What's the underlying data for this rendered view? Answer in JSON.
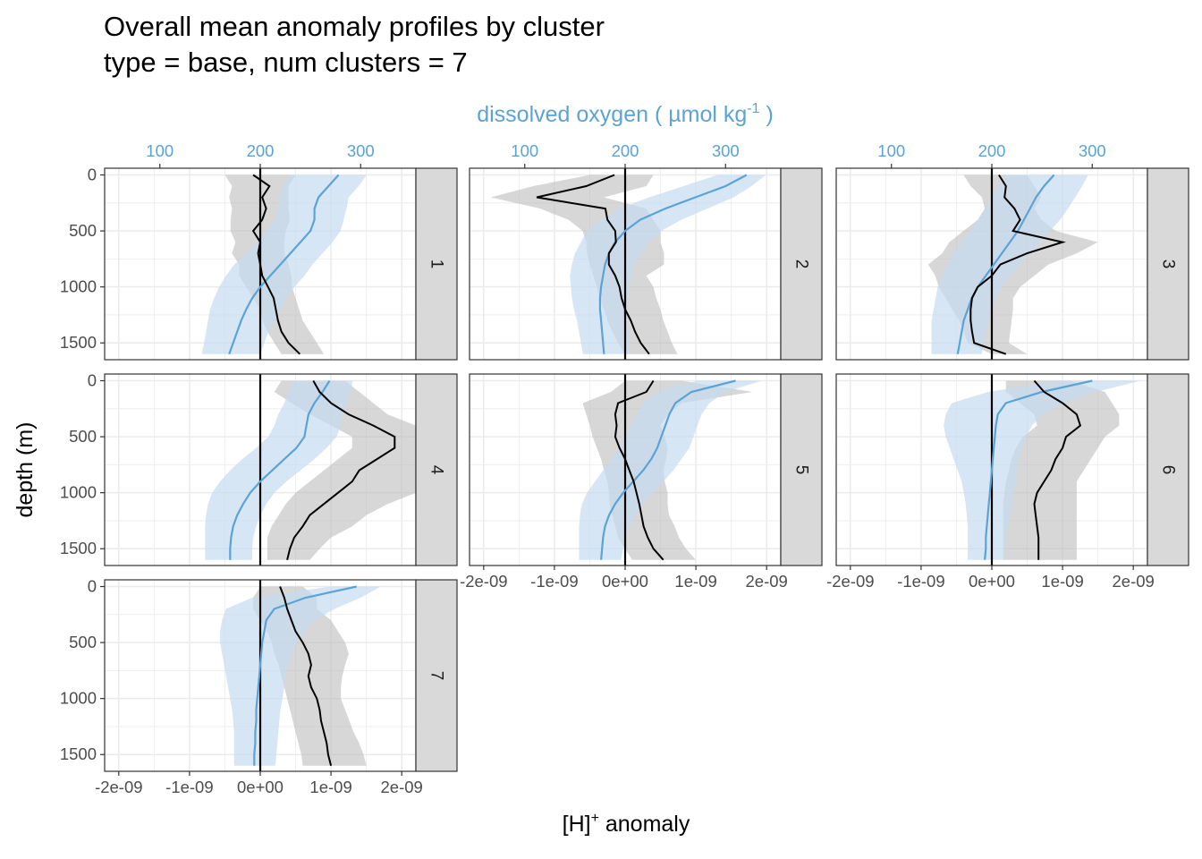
{
  "title_line1": "Overall mean anomaly profiles by cluster",
  "title_line2": "type = base, num clusters = 7",
  "chart_data": {
    "type": "line",
    "facet_by": "cluster",
    "xlabel": "[H]",
    "xlabel_superscript": "+",
    "xlabel_suffix": " anomaly",
    "ylabel": "depth (m)",
    "secondary_xlabel": "dissolved oxygen ( µmol kg",
    "secondary_xlabel_superscript": "-1",
    "secondary_xlabel_suffix": " )",
    "xlim": [
      -2.2e-09,
      2.2e-09
    ],
    "ylim": [
      1650,
      -60
    ],
    "secondary_xlim": [
      45,
      355
    ],
    "x_ticks": [
      -2e-09,
      -1e-09,
      0,
      1e-09,
      2e-09
    ],
    "x_tick_labels": [
      "-2e-09",
      "-1e-09",
      "0e+00",
      "1e-09",
      "2e-09"
    ],
    "y_ticks": [
      0,
      500,
      1000,
      1500
    ],
    "y_tick_labels": [
      "0",
      "500",
      "1000",
      "1500"
    ],
    "secondary_x_ticks": [
      100,
      200,
      300
    ],
    "secondary_x_tick_labels": [
      "100",
      "200",
      "300"
    ],
    "colors": {
      "h_line": "#000000",
      "h_ribbon": "#bdbdbd",
      "oxygen_line": "#5ba3d6",
      "oxygen_ribbon": "#c6dbef",
      "panel_border": "#333333",
      "strip_fill": "#d9d9d9",
      "grid": "#ebebeb",
      "zero_line": "#000000"
    },
    "depths": [
      0,
      100,
      200,
      300,
      400,
      500,
      600,
      700,
      800,
      900,
      1000,
      1100,
      1200,
      1300,
      1400,
      1500,
      1600
    ],
    "clusters": [
      {
        "label": "1",
        "h_anomaly": [
          -1e-10,
          1.3e-10,
          2.8e-11,
          8.4e-11,
          2.8e-11,
          -1e-10,
          0,
          -3e-11,
          0,
          2.8e-11,
          1.1e-10,
          1.9e-10,
          2.2e-10,
          2.5e-10,
          3e-10,
          4e-10,
          5.6e-10
        ],
        "h_low": [
          -5e-10,
          -4e-10,
          -4.4e-10,
          -4e-10,
          -4.2e-10,
          -4.2e-10,
          -3.5e-10,
          -4e-10,
          -3e-10,
          -3e-10,
          -2e-10,
          -1e-10,
          0,
          3e-11,
          1e-10,
          2e-10,
          3e-10
        ],
        "h_high": [
          5e-10,
          4e-10,
          4e-10,
          4e-10,
          4.2e-10,
          3.6e-10,
          3.4e-10,
          3.4e-10,
          4e-10,
          4.4e-10,
          4.5e-10,
          5e-10,
          5.5e-10,
          6e-10,
          7e-10,
          8e-10,
          9e-10
        ],
        "oxygen": [
          278,
          268,
          258,
          254,
          254,
          250,
          240,
          230,
          220,
          210,
          200,
          192,
          186,
          181,
          177,
          173,
          169
        ],
        "oxygen_low": [
          230,
          222,
          218,
          218,
          214,
          206,
          196,
          186,
          174,
          166,
          159,
          154,
          150,
          148,
          146,
          144,
          142
        ],
        "oxygen_high": [
          306,
          298,
          288,
          286,
          283,
          280,
          272,
          262,
          252,
          244,
          234,
          226,
          220,
          214,
          208,
          204,
          200
        ]
      },
      {
        "label": "2",
        "h_anomaly": [
          -1.5e-10,
          -5.5e-10,
          -1.25e-09,
          -2.8e-10,
          -2.5e-10,
          -1.4e-10,
          -1.3e-10,
          -2.3e-10,
          -2.3e-10,
          -1.4e-10,
          -8e-11,
          -5e-11,
          0,
          8e-11,
          1.4e-10,
          2.2e-10,
          3.4e-10
        ],
        "h_low": [
          -5e-10,
          -1.3e-09,
          -1.9e-09,
          -1.2e-09,
          -8e-10,
          -6e-10,
          -5.5e-10,
          -5.4e-10,
          -5e-10,
          -4.5e-10,
          -4e-10,
          -3.6e-10,
          -3e-10,
          -2.5e-10,
          -1.8e-10,
          -1e-10,
          0
        ],
        "h_high": [
          4e-10,
          3e-10,
          -3e-10,
          3e-10,
          4e-10,
          5e-10,
          5e-10,
          5.5e-10,
          5.5e-10,
          3e-10,
          4e-10,
          4.4e-10,
          5e-10,
          5.4e-10,
          6e-10,
          6.6e-10,
          7.4e-10
        ],
        "oxygen": [
          321,
          300,
          270,
          240,
          215,
          200,
          190,
          184,
          180,
          178,
          176,
          175,
          175,
          176,
          177,
          178,
          179
        ],
        "oxygen_low": [
          292,
          258,
          224,
          194,
          176,
          162,
          156,
          150,
          147,
          145,
          146,
          147,
          149,
          152,
          154,
          156,
          158
        ],
        "oxygen_high": [
          340,
          326,
          308,
          282,
          256,
          236,
          224,
          216,
          210,
          206,
          204,
          203,
          202,
          202,
          203,
          204,
          205
        ]
      },
      {
        "label": "3",
        "h_anomaly": [
          1e-10,
          2e-10,
          1.8e-10,
          3.2e-10,
          4e-10,
          3e-10,
          1e-09,
          5e-10,
          1.2e-10,
          0,
          -2e-10,
          -2.8e-10,
          -3e-10,
          -3e-10,
          -2.8e-10,
          -2.5e-10,
          2e-10
        ],
        "h_low": [
          -4e-10,
          -3e-10,
          -1.4e-10,
          -1e-10,
          -2e-10,
          -4e-10,
          -6e-10,
          -7e-10,
          -9e-10,
          -8e-10,
          -7.5e-10,
          -6.5e-10,
          -5.6e-10,
          -4.6e-10,
          -4e-10,
          -3.4e-10,
          0
        ],
        "h_high": [
          5e-10,
          6e-10,
          7e-10,
          6e-10,
          7e-10,
          9e-10,
          1.5e-09,
          1.2e-09,
          8e-10,
          6e-10,
          4e-10,
          3e-10,
          3e-10,
          2.8e-10,
          2.6e-10,
          2.4e-10,
          5e-10
        ],
        "oxygen": [
          262,
          252,
          244,
          238,
          232,
          226,
          218,
          210,
          202,
          194,
          186,
          180,
          176,
          172,
          170,
          168,
          166
        ],
        "oxygen_low": [
          212,
          206,
          200,
          194,
          186,
          178,
          170,
          162,
          156,
          150,
          146,
          144,
          142,
          140,
          140,
          140,
          140
        ],
        "oxygen_high": [
          296,
          290,
          283,
          276,
          268,
          258,
          248,
          238,
          228,
          218,
          210,
          204,
          200,
          196,
          194,
          192,
          190
        ]
      },
      {
        "label": "4",
        "h_anomaly": [
          7.5e-10,
          8.4e-10,
          1e-09,
          1.25e-09,
          1.6e-09,
          1.9e-09,
          1.9e-09,
          1.65e-09,
          1.4e-09,
          1.3e-09,
          1.1e-09,
          9e-10,
          7e-10,
          6e-10,
          4.8e-10,
          4.2e-10,
          3.8e-10
        ],
        "h_low": [
          3e-10,
          2e-10,
          4.4e-10,
          7e-10,
          1e-09,
          1.3e-09,
          1.3e-09,
          1.1e-09,
          9e-10,
          7e-10,
          5e-10,
          3.6e-10,
          2.6e-10,
          1.6e-10,
          1e-10,
          1e-10,
          1e-10
        ],
        "h_high": [
          1.2e-09,
          1.4e-09,
          1.6e-09,
          1.8e-09,
          2.2e-09,
          2.2e-09,
          2.2e-09,
          2.2e-09,
          2.2e-09,
          2.2e-09,
          2.2e-09,
          1.8e-09,
          1.5e-09,
          1.3e-09,
          1e-09,
          8.4e-10,
          7e-10
        ],
        "oxygen": [
          269,
          262,
          254,
          248,
          246,
          244,
          236,
          224,
          212,
          200,
          190,
          183,
          177,
          173,
          171,
          170,
          170
        ],
        "oxygen_low": [
          232,
          228,
          224,
          218,
          214,
          208,
          196,
          182,
          170,
          160,
          152,
          148,
          146,
          145,
          145,
          145,
          145
        ],
        "oxygen_high": [
          292,
          290,
          286,
          282,
          280,
          276,
          266,
          254,
          240,
          226,
          214,
          206,
          200,
          196,
          193,
          192,
          192
        ]
      },
      {
        "label": "5",
        "h_anomaly": [
          4e-10,
          3e-10,
          -1e-10,
          -1.4e-10,
          -1.2e-10,
          -1.4e-10,
          -8e-11,
          0,
          6e-11,
          1.2e-10,
          1.6e-10,
          2e-10,
          2.3e-10,
          2.6e-10,
          3.2e-10,
          4e-10,
          5.4e-10
        ],
        "h_low": [
          0,
          -2e-10,
          -6e-10,
          -5.5e-10,
          -5e-10,
          -4.6e-10,
          -4e-10,
          -3.4e-10,
          -3e-10,
          -2.5e-10,
          -2.3e-10,
          -2.2e-10,
          -1.8e-10,
          -1.4e-10,
          -1e-10,
          0,
          1e-10
        ],
        "h_high": [
          8e-10,
          1.8e-09,
          8e-10,
          6e-10,
          5e-10,
          5.6e-10,
          6e-10,
          5.8e-10,
          5.4e-10,
          5.6e-10,
          6e-10,
          6e-10,
          6.2e-10,
          7e-10,
          7.6e-10,
          8.6e-10,
          1e-09
        ],
        "oxygen": [
          310,
          266,
          250,
          244,
          240,
          236,
          232,
          226,
          218,
          208,
          198,
          190,
          184,
          180,
          178,
          177,
          176
        ],
        "oxygen_low": [
          272,
          232,
          218,
          212,
          206,
          200,
          194,
          186,
          178,
          170,
          162,
          157,
          155,
          154,
          154,
          154,
          154
        ],
        "oxygen_high": [
          336,
          300,
          284,
          276,
          272,
          268,
          264,
          256,
          248,
          238,
          228,
          218,
          210,
          204,
          200,
          198,
          196
        ]
      },
      {
        "label": "6",
        "h_anomaly": [
          6e-10,
          7.4e-10,
          1e-09,
          1.2e-09,
          1.25e-09,
          1.05e-09,
          1e-09,
          9e-10,
          8.4e-10,
          7.4e-10,
          6.4e-10,
          6e-10,
          6.2e-10,
          6.4e-10,
          6.6e-10,
          6.6e-10,
          6.6e-10
        ],
        "h_low": [
          2e-10,
          2e-10,
          4e-10,
          6e-10,
          6.4e-10,
          4.4e-10,
          3.4e-10,
          2.8e-10,
          2.4e-10,
          2e-10,
          1.8e-10,
          1.6e-10,
          1.6e-10,
          1.6e-10,
          1.6e-10,
          1.6e-10,
          1.6e-10
        ],
        "h_high": [
          1.1e-09,
          1.6e-09,
          1.7e-09,
          1.8e-09,
          1.8e-09,
          1.6e-09,
          1.5e-09,
          1.4e-09,
          1.3e-09,
          1.2e-09,
          1.2e-09,
          1.2e-09,
          1.2e-09,
          1.2e-09,
          1.2e-09,
          1.2e-09,
          1.2e-09
        ],
        "oxygen": [
          300,
          250,
          214,
          206,
          204,
          203,
          202,
          201,
          200,
          199,
          198,
          197,
          196,
          195,
          194,
          194,
          193
        ],
        "oxygen_low": [
          266,
          196,
          160,
          154,
          152,
          154,
          158,
          162,
          166,
          170,
          172,
          174,
          175,
          176,
          176,
          176,
          176
        ],
        "oxygen_high": [
          348,
          304,
          272,
          250,
          240,
          234,
          230,
          227,
          225,
          224,
          222,
          220,
          218,
          216,
          214,
          213,
          212
        ]
      },
      {
        "label": "7",
        "h_anomaly": [
          2.8e-10,
          3.4e-10,
          3.8e-10,
          4.4e-10,
          5e-10,
          6e-10,
          6.8e-10,
          7.2e-10,
          6.8e-10,
          7.2e-10,
          8e-10,
          8.4e-10,
          8.6e-10,
          9e-10,
          9.4e-10,
          9.6e-10,
          1e-09
        ],
        "h_low": [
          0,
          -1e-10,
          -1e-10,
          0,
          1e-10,
          1.6e-10,
          2e-10,
          2.6e-10,
          3e-10,
          3.4e-10,
          3.8e-10,
          4.2e-10,
          4.6e-10,
          5e-10,
          5.4e-10,
          5.8e-10,
          6e-10
        ],
        "h_high": [
          6e-10,
          8e-10,
          8e-10,
          1e-09,
          1.1e-09,
          1.2e-09,
          1.25e-09,
          1.2e-09,
          1.16e-09,
          1.14e-09,
          1.14e-09,
          1.2e-09,
          1.26e-09,
          1.32e-09,
          1.4e-09,
          1.46e-09,
          1.5e-09
        ],
        "oxygen": [
          296,
          245,
          214,
          206,
          204,
          202,
          201,
          200,
          199,
          198,
          197,
          196,
          196,
          195,
          195,
          194,
          194
        ],
        "oxygen_low": [
          270,
          192,
          166,
          162,
          160,
          160,
          162,
          164,
          166,
          168,
          170,
          172,
          173,
          174,
          174,
          174,
          174
        ],
        "oxygen_high": [
          320,
          300,
          274,
          254,
          244,
          236,
          232,
          228,
          226,
          224,
          222,
          220,
          219,
          218,
          217,
          216,
          215
        ]
      }
    ]
  }
}
